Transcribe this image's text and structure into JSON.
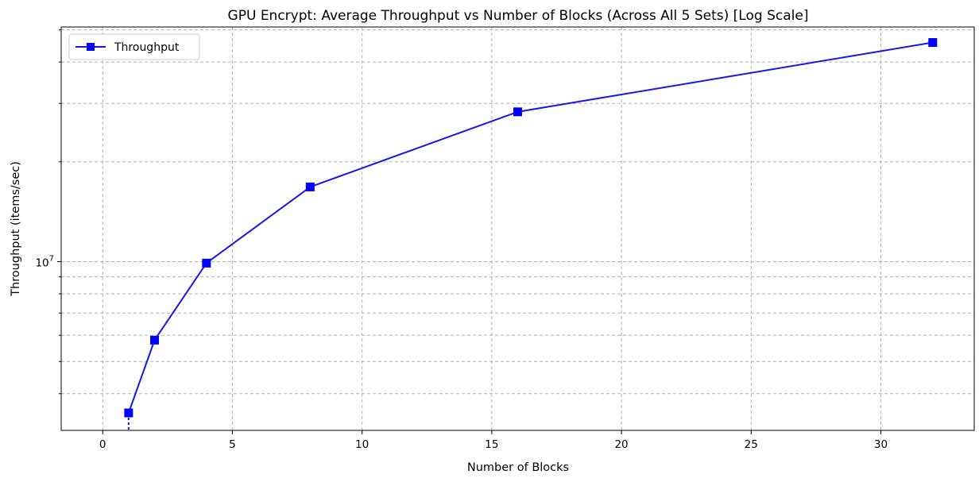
{
  "chart_data": {
    "type": "line",
    "title": "GPU Encrypt: Average Throughput vs Number of Blocks (Across All 5 Sets) [Log Scale]",
    "xlabel": "Number of Blocks",
    "ylabel": "Throughput (items/sec)",
    "x": [
      1,
      2,
      4,
      8,
      16,
      32
    ],
    "series": [
      {
        "name": "Throughput",
        "values": [
          3500000,
          5800000,
          9900000,
          16800000,
          28300000,
          45800000
        ]
      }
    ],
    "xlim": [
      -1.6,
      33.6
    ],
    "ylim": [
      3100000,
      51000000
    ],
    "y_scale": "log",
    "x_ticks": [
      0,
      5,
      10,
      15,
      20,
      25,
      30
    ],
    "y_tick_label": {
      "base": "10",
      "exp": "7"
    },
    "y_tick_value": 10000000,
    "grid": true,
    "legend": "top-left",
    "line_color": "#1515f0",
    "marker_color": "#0000ff",
    "grid_color": "#b0b0b0"
  }
}
